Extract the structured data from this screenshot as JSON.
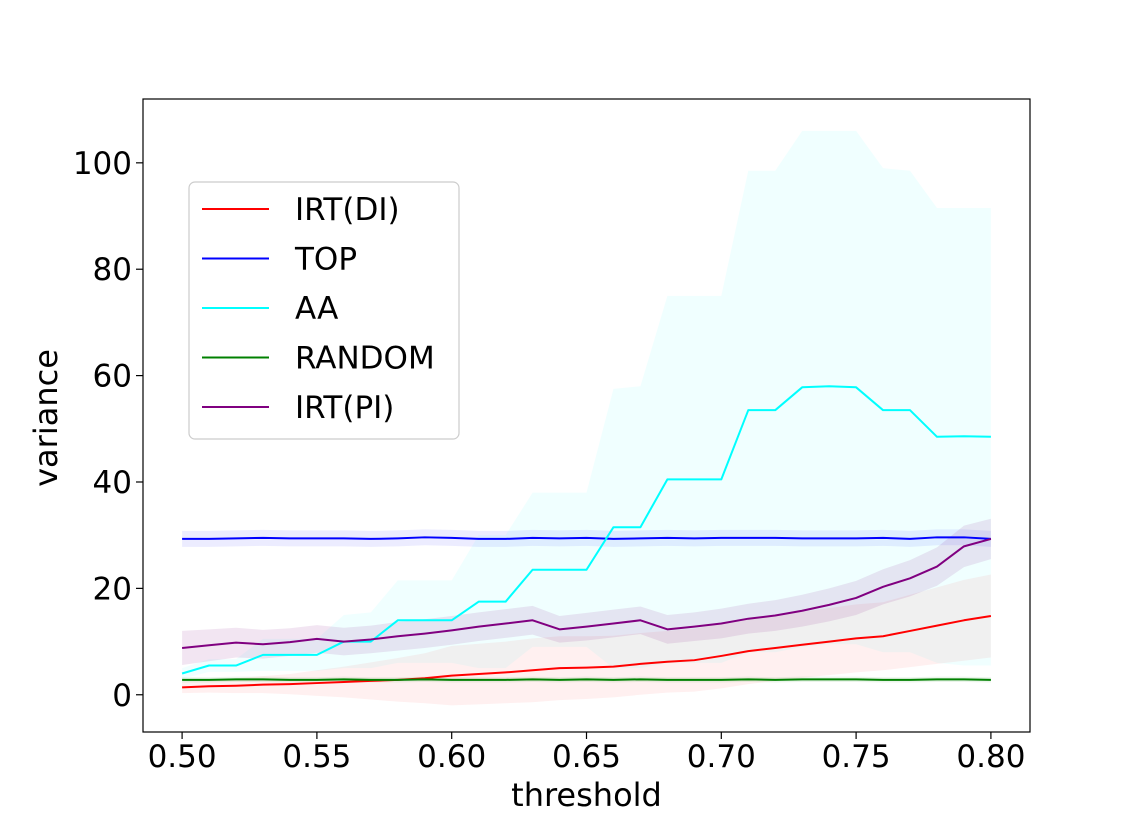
{
  "chart_data": {
    "type": "line",
    "title": "",
    "xlabel": "threshold",
    "ylabel": "variance",
    "xlim": [
      0.4855,
      0.8145
    ],
    "ylim": [
      -7,
      112
    ],
    "xticks": [
      "0.50",
      "0.55",
      "0.60",
      "0.65",
      "0.70",
      "0.75",
      "0.80"
    ],
    "yticks": [
      "0",
      "20",
      "40",
      "60",
      "80",
      "100"
    ],
    "legend_position": "upper-left",
    "grid": false,
    "x": [
      0.5,
      0.51,
      0.52,
      0.53,
      0.54,
      0.55,
      0.56,
      0.57,
      0.58,
      0.59,
      0.6,
      0.61,
      0.62,
      0.63,
      0.64,
      0.65,
      0.66,
      0.67,
      0.68,
      0.69,
      0.7,
      0.71,
      0.72,
      0.73,
      0.74,
      0.75,
      0.76,
      0.77,
      0.78,
      0.79,
      0.8
    ],
    "series": [
      {
        "name": "IRT(DI)",
        "color": "#ff0000",
        "band_color": "#ff0000",
        "band_opacity": 0.06,
        "values": [
          1.4,
          1.6,
          1.7,
          1.9,
          2.0,
          2.2,
          2.4,
          2.6,
          2.8,
          3.1,
          3.6,
          3.9,
          4.2,
          4.6,
          5.0,
          5.1,
          5.3,
          5.8,
          6.2,
          6.5,
          7.3,
          8.2,
          8.8,
          9.4,
          10.0,
          10.6,
          11.0,
          12.0,
          13.0,
          14.0,
          14.8
        ],
        "band": [
          [
            0.3,
            2.5
          ],
          [
            0.4,
            2.8
          ],
          [
            0.3,
            3.1
          ],
          [
            0.3,
            3.5
          ],
          [
            0.1,
            3.9
          ],
          [
            -0.2,
            4.6
          ],
          [
            -0.5,
            5.3
          ],
          [
            -0.9,
            6.1
          ],
          [
            -1.3,
            6.9
          ],
          [
            -1.6,
            7.8
          ],
          [
            -2.0,
            9.2
          ],
          [
            -1.8,
            9.6
          ],
          [
            -1.6,
            10.0
          ],
          [
            -1.4,
            10.6
          ],
          [
            -1.0,
            11.0
          ],
          [
            -0.8,
            11.0
          ],
          [
            -0.5,
            11.1
          ],
          [
            0.0,
            11.6
          ],
          [
            0.4,
            12.0
          ],
          [
            0.6,
            12.4
          ],
          [
            1.2,
            13.4
          ],
          [
            2.0,
            14.4
          ],
          [
            2.6,
            15.0
          ],
          [
            3.2,
            15.6
          ],
          [
            3.7,
            16.3
          ],
          [
            4.2,
            17.0
          ],
          [
            4.6,
            17.4
          ],
          [
            5.2,
            18.8
          ],
          [
            5.8,
            20.2
          ],
          [
            6.4,
            21.6
          ],
          [
            7.0,
            22.6
          ]
        ]
      },
      {
        "name": "TOP",
        "color": "#0000ff",
        "band_color": "#6060ff",
        "band_opacity": 0.12,
        "values": [
          29.3,
          29.3,
          29.4,
          29.5,
          29.4,
          29.4,
          29.4,
          29.3,
          29.4,
          29.6,
          29.5,
          29.3,
          29.3,
          29.5,
          29.4,
          29.5,
          29.3,
          29.4,
          29.5,
          29.4,
          29.5,
          29.5,
          29.5,
          29.4,
          29.4,
          29.4,
          29.5,
          29.3,
          29.6,
          29.6,
          29.3
        ],
        "band": [
          [
            27.8,
            30.8
          ],
          [
            27.8,
            30.8
          ],
          [
            27.9,
            30.9
          ],
          [
            28.0,
            31.0
          ],
          [
            27.9,
            30.9
          ],
          [
            27.9,
            30.9
          ],
          [
            27.9,
            30.9
          ],
          [
            27.8,
            30.8
          ],
          [
            27.9,
            30.9
          ],
          [
            28.1,
            31.1
          ],
          [
            28.0,
            31.0
          ],
          [
            27.8,
            30.8
          ],
          [
            27.8,
            30.8
          ],
          [
            28.0,
            31.0
          ],
          [
            27.9,
            30.9
          ],
          [
            28.0,
            31.0
          ],
          [
            27.8,
            30.8
          ],
          [
            27.9,
            30.9
          ],
          [
            28.0,
            31.0
          ],
          [
            27.9,
            30.9
          ],
          [
            28.0,
            31.0
          ],
          [
            28.0,
            31.0
          ],
          [
            28.0,
            31.0
          ],
          [
            27.9,
            30.9
          ],
          [
            27.9,
            30.9
          ],
          [
            27.9,
            30.9
          ],
          [
            28.0,
            31.0
          ],
          [
            27.8,
            30.8
          ],
          [
            28.1,
            31.1
          ],
          [
            28.1,
            31.1
          ],
          [
            27.8,
            30.8
          ]
        ]
      },
      {
        "name": "AA",
        "color": "#00ffff",
        "band_color": "#00ffff",
        "band_opacity": 0.06,
        "values": [
          4.0,
          5.5,
          5.5,
          7.5,
          7.5,
          7.5,
          10.0,
          10.0,
          14.0,
          14.0,
          14.0,
          17.5,
          17.5,
          23.5,
          23.5,
          23.5,
          31.5,
          31.5,
          40.5,
          40.5,
          40.5,
          53.5,
          53.5,
          57.8,
          58.0,
          57.8,
          53.5,
          53.5,
          48.5,
          48.6,
          48.5
        ],
        "band": [
          [
            3.0,
            5.0
          ],
          [
            4.3,
            6.7
          ],
          [
            4.3,
            6.7
          ],
          [
            4.5,
            10.5
          ],
          [
            4.5,
            10.5
          ],
          [
            4.5,
            10.5
          ],
          [
            5.0,
            15.0
          ],
          [
            5.0,
            15.5
          ],
          [
            6.0,
            21.5
          ],
          [
            6.0,
            21.5
          ],
          [
            6.0,
            21.5
          ],
          [
            5.0,
            30.0
          ],
          [
            5.0,
            30.0
          ],
          [
            9.0,
            38.0
          ],
          [
            9.0,
            38.0
          ],
          [
            9.0,
            38.0
          ],
          [
            5.0,
            57.5
          ],
          [
            5.0,
            58.0
          ],
          [
            6.0,
            75.0
          ],
          [
            6.0,
            75.0
          ],
          [
            6.0,
            75.0
          ],
          [
            8.0,
            98.5
          ],
          [
            8.0,
            98.5
          ],
          [
            9.0,
            106.0
          ],
          [
            9.5,
            106.0
          ],
          [
            9.5,
            106.0
          ],
          [
            8.0,
            99.0
          ],
          [
            8.0,
            98.5
          ],
          [
            6.0,
            91.5
          ],
          [
            5.5,
            91.5
          ],
          [
            5.5,
            91.5
          ]
        ]
      },
      {
        "name": "RANDOM",
        "color": "#008000",
        "band_color": "#008000",
        "band_opacity": 0.08,
        "values": [
          2.8,
          2.8,
          2.9,
          2.9,
          2.8,
          2.8,
          2.9,
          2.8,
          2.8,
          2.9,
          2.8,
          2.8,
          2.8,
          2.9,
          2.8,
          2.9,
          2.8,
          2.9,
          2.8,
          2.8,
          2.8,
          2.9,
          2.8,
          2.9,
          2.9,
          2.9,
          2.8,
          2.8,
          2.9,
          2.9,
          2.8
        ],
        "band": [
          [
            2.3,
            3.3
          ],
          [
            2.3,
            3.3
          ],
          [
            2.4,
            3.4
          ],
          [
            2.4,
            3.4
          ],
          [
            2.3,
            3.3
          ],
          [
            2.3,
            3.3
          ],
          [
            2.4,
            3.4
          ],
          [
            2.3,
            3.3
          ],
          [
            2.3,
            3.3
          ],
          [
            2.4,
            3.4
          ],
          [
            2.3,
            3.3
          ],
          [
            2.3,
            3.3
          ],
          [
            2.3,
            3.3
          ],
          [
            2.4,
            3.4
          ],
          [
            2.3,
            3.3
          ],
          [
            2.4,
            3.4
          ],
          [
            2.3,
            3.3
          ],
          [
            2.4,
            3.4
          ],
          [
            2.3,
            3.3
          ],
          [
            2.3,
            3.3
          ],
          [
            2.3,
            3.3
          ],
          [
            2.4,
            3.4
          ],
          [
            2.3,
            3.3
          ],
          [
            2.4,
            3.4
          ],
          [
            2.4,
            3.4
          ],
          [
            2.4,
            3.4
          ],
          [
            2.3,
            3.3
          ],
          [
            2.3,
            3.3
          ],
          [
            2.4,
            3.4
          ],
          [
            2.4,
            3.4
          ],
          [
            2.3,
            3.3
          ]
        ]
      },
      {
        "name": "IRT(PI)",
        "color": "#800080",
        "band_color": "#800080",
        "band_opacity": 0.1,
        "values": [
          8.8,
          9.3,
          9.8,
          9.5,
          9.9,
          10.5,
          10.0,
          10.4,
          11.0,
          11.5,
          12.1,
          12.8,
          13.4,
          14.0,
          12.3,
          12.8,
          13.4,
          14.0,
          12.3,
          12.8,
          13.4,
          14.3,
          14.9,
          15.8,
          16.9,
          18.2,
          20.3,
          21.9,
          24.1,
          27.9,
          29.3
        ],
        "band": [
          [
            5.6,
            12.0
          ],
          [
            6.3,
            12.3
          ],
          [
            7.0,
            12.6
          ],
          [
            6.8,
            12.2
          ],
          [
            7.3,
            12.5
          ],
          [
            7.9,
            13.1
          ],
          [
            7.4,
            12.6
          ],
          [
            7.8,
            13.0
          ],
          [
            8.3,
            13.7
          ],
          [
            8.8,
            14.2
          ],
          [
            9.4,
            14.8
          ],
          [
            10.1,
            15.5
          ],
          [
            10.7,
            16.1
          ],
          [
            11.3,
            16.7
          ],
          [
            9.8,
            14.8
          ],
          [
            10.2,
            15.4
          ],
          [
            10.8,
            16.0
          ],
          [
            11.4,
            16.6
          ],
          [
            9.6,
            15.0
          ],
          [
            10.1,
            15.5
          ],
          [
            10.6,
            16.2
          ],
          [
            11.5,
            17.1
          ],
          [
            12.0,
            17.8
          ],
          [
            12.8,
            18.8
          ],
          [
            13.8,
            20.0
          ],
          [
            15.0,
            21.4
          ],
          [
            17.0,
            23.6
          ],
          [
            18.5,
            25.3
          ],
          [
            20.5,
            27.7
          ],
          [
            24.0,
            31.8
          ],
          [
            25.5,
            33.1
          ]
        ]
      }
    ]
  }
}
